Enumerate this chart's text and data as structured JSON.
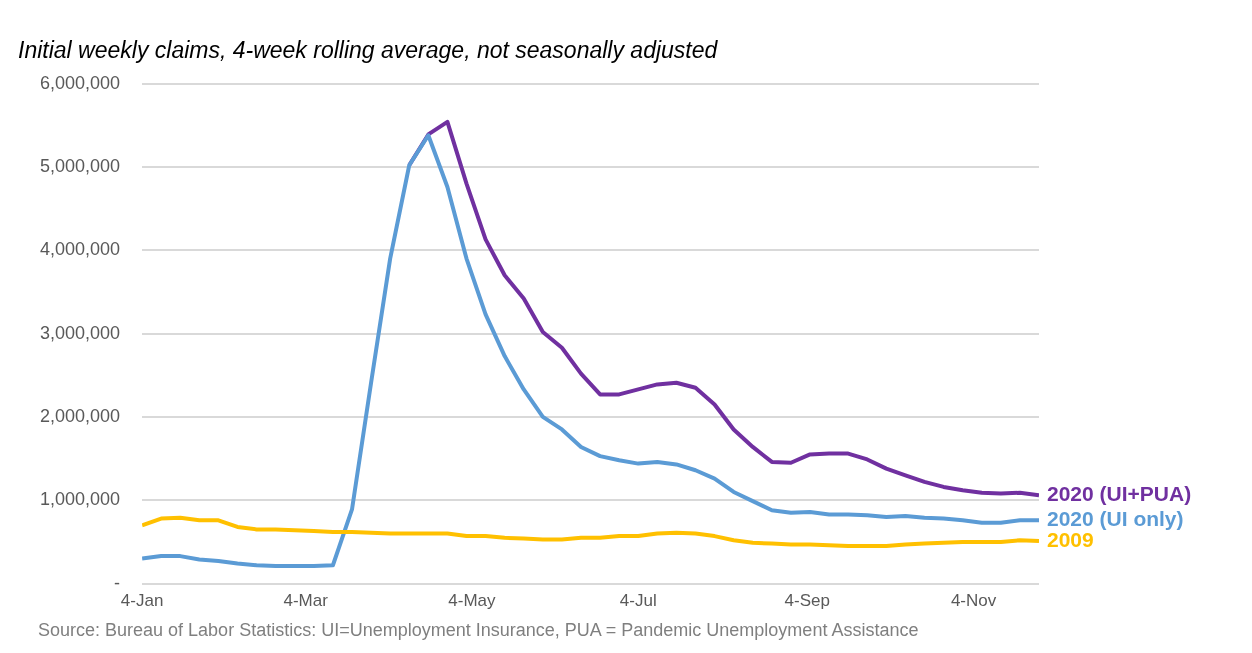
{
  "chart_data": {
    "type": "line",
    "title": "Initial weekly claims, 4-week rolling average, not seasonally adjusted",
    "x": [
      "--01-04",
      "--01-11",
      "--01-18",
      "--01-25",
      "--02-01",
      "--02-08",
      "--02-15",
      "--02-22",
      "--02-29",
      "--03-07",
      "--03-14",
      "--03-21",
      "--03-28",
      "--04-04",
      "--04-11",
      "--04-18",
      "--04-25",
      "--05-02",
      "--05-09",
      "--05-16",
      "--05-23",
      "--05-30",
      "--06-06",
      "--06-13",
      "--06-20",
      "--06-27",
      "--07-04",
      "--07-11",
      "--07-18",
      "--07-25",
      "--08-01",
      "--08-08",
      "--08-15",
      "--08-22",
      "--08-29",
      "--09-05",
      "--09-12",
      "--09-19",
      "--09-26",
      "--10-03",
      "--10-10",
      "--10-17",
      "--10-24",
      "--10-31",
      "--11-07",
      "--11-14",
      "--11-21",
      "--11-28"
    ],
    "series": [
      {
        "name": "2020 (UI+PUA)",
        "color": "#7030a0",
        "values": [
          null,
          null,
          null,
          null,
          null,
          null,
          null,
          null,
          null,
          null,
          null,
          null,
          null,
          null,
          5020000,
          5390000,
          5540000,
          4800000,
          4130000,
          3700000,
          3420000,
          3020000,
          2830000,
          2520000,
          2270000,
          2270000,
          2330000,
          2390000,
          2410000,
          2350000,
          2150000,
          1850000,
          1640000,
          1460000,
          1450000,
          1550000,
          1560000,
          1560000,
          1490000,
          1380000,
          1300000,
          1220000,
          1160000,
          1120000,
          1090000,
          1080000,
          1090000,
          1060000
        ]
      },
      {
        "name": "2020 (UI only)",
        "color": "#5b9bd5",
        "values": [
          300000,
          330000,
          330000,
          290000,
          270000,
          240000,
          220000,
          210000,
          210000,
          210000,
          220000,
          890000,
          2410000,
          3900000,
          5020000,
          5380000,
          4760000,
          3900000,
          3230000,
          2730000,
          2330000,
          2000000,
          1850000,
          1640000,
          1530000,
          1480000,
          1440000,
          1460000,
          1430000,
          1360000,
          1260000,
          1100000,
          990000,
          880000,
          850000,
          860000,
          830000,
          830000,
          820000,
          800000,
          810000,
          790000,
          780000,
          760000,
          730000,
          730000,
          760000,
          760000
        ]
      },
      {
        "name": "2009",
        "color": "#ffc000",
        "values": [
          700000,
          780000,
          790000,
          760000,
          760000,
          680000,
          650000,
          650000,
          640000,
          630000,
          620000,
          620000,
          610000,
          600000,
          600000,
          600000,
          600000,
          570000,
          570000,
          550000,
          540000,
          530000,
          530000,
          550000,
          550000,
          570000,
          570000,
          600000,
          610000,
          600000,
          570000,
          520000,
          490000,
          480000,
          470000,
          470000,
          460000,
          450000,
          450000,
          450000,
          470000,
          480000,
          490000,
          500000,
          500000,
          500000,
          520000,
          510000
        ]
      }
    ],
    "xlim": [
      "--01-04",
      "--11-28"
    ],
    "xticks": [
      {
        "value": "--01-04",
        "label": "4-Jan"
      },
      {
        "value": "--03-04",
        "label": "4-Mar"
      },
      {
        "value": "--05-04",
        "label": "4-May"
      },
      {
        "value": "--07-04",
        "label": "4-Jul"
      },
      {
        "value": "--09-04",
        "label": "4-Sep"
      },
      {
        "value": "--11-04",
        "label": "4-Nov"
      }
    ],
    "ylim": [
      0,
      6000000
    ],
    "yticks": [
      {
        "value": 0,
        "label": "-"
      },
      {
        "value": 1000000,
        "label": "1,000,000"
      },
      {
        "value": 2000000,
        "label": "2,000,000"
      },
      {
        "value": 3000000,
        "label": "3,000,000"
      },
      {
        "value": 4000000,
        "label": "4,000,000"
      },
      {
        "value": 5000000,
        "label": "5,000,000"
      },
      {
        "value": 6000000,
        "label": "6,000,000"
      }
    ],
    "grid": "y",
    "legend": false,
    "marker": "none",
    "line_style": "solid",
    "annotations": [
      "Source: Bureau of Labor Statistics: UI=Unemployment Insurance, PUA = Pandemic Unemployment Assistance"
    ]
  }
}
